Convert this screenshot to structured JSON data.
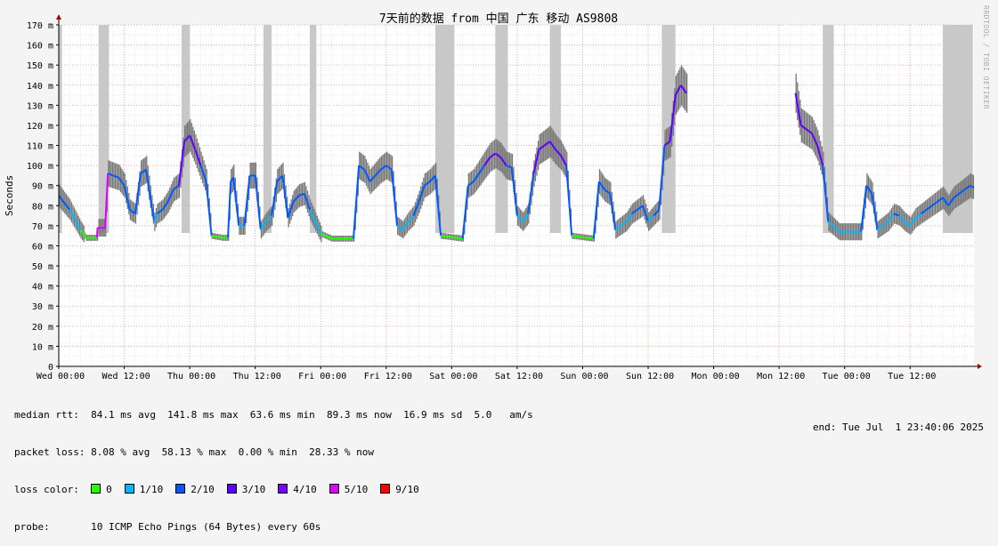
{
  "side_text": "RRDTOOL / TOBI OETIKER",
  "chart_data": {
    "type": "line",
    "title": "7天前的数据 from 中国 广东 移动 AS9808",
    "ylabel": "Seconds",
    "ylim": [
      0,
      170
    ],
    "y_ticks": [
      {
        "v": 0,
        "label": "0"
      },
      {
        "v": 10,
        "label": "10 m"
      },
      {
        "v": 20,
        "label": "20 m"
      },
      {
        "v": 30,
        "label": "30 m"
      },
      {
        "v": 40,
        "label": "40 m"
      },
      {
        "v": 50,
        "label": "50 m"
      },
      {
        "v": 60,
        "label": "60 m"
      },
      {
        "v": 70,
        "label": "70 m"
      },
      {
        "v": 80,
        "label": "80 m"
      },
      {
        "v": 90,
        "label": "90 m"
      },
      {
        "v": 100,
        "label": "100 m"
      },
      {
        "v": 110,
        "label": "110 m"
      },
      {
        "v": 120,
        "label": "120 m"
      },
      {
        "v": 130,
        "label": "130 m"
      },
      {
        "v": 140,
        "label": "140 m"
      },
      {
        "v": 150,
        "label": "150 m"
      },
      {
        "v": 160,
        "label": "160 m"
      },
      {
        "v": 170,
        "label": "170 m"
      }
    ],
    "x_ticks": [
      "Wed 00:00",
      "Wed 12:00",
      "Thu 00:00",
      "Thu 12:00",
      "Fri 00:00",
      "Fri 12:00",
      "Sat 00:00",
      "Sat 12:00",
      "Sun 00:00",
      "Sun 12:00",
      "Mon 00:00",
      "Mon 12:00",
      "Tue 00:00",
      "Tue 12:00"
    ],
    "x_unit": "hours from Wed 00:00",
    "xlim": [
      0,
      167.7
    ],
    "grid": true,
    "median_ms": [
      [
        0,
        85
      ],
      [
        2,
        78
      ],
      [
        4,
        68
      ],
      [
        5,
        64
      ],
      [
        7,
        64
      ],
      [
        7.1,
        69
      ],
      [
        8.5,
        69
      ],
      [
        9,
        96
      ],
      [
        10,
        95
      ],
      [
        11,
        94
      ],
      [
        12,
        90
      ],
      [
        13,
        78
      ],
      [
        14,
        76
      ],
      [
        15,
        96
      ],
      [
        16,
        98
      ],
      [
        17,
        80
      ],
      [
        17.5,
        72
      ],
      [
        18,
        76
      ],
      [
        19,
        78
      ],
      [
        20,
        82
      ],
      [
        21,
        88
      ],
      [
        22,
        90
      ],
      [
        23,
        112
      ],
      [
        24,
        115
      ],
      [
        25,
        108
      ],
      [
        26,
        100
      ],
      [
        27,
        92
      ],
      [
        28,
        65
      ],
      [
        30,
        64
      ],
      [
        31,
        64
      ],
      [
        31.5,
        92
      ],
      [
        32,
        94
      ],
      [
        33,
        70
      ],
      [
        34,
        70
      ],
      [
        35,
        95
      ],
      [
        36,
        95
      ],
      [
        37,
        68
      ],
      [
        38,
        72
      ],
      [
        39,
        75
      ],
      [
        40,
        92
      ],
      [
        41,
        95
      ],
      [
        42,
        74
      ],
      [
        43,
        82
      ],
      [
        44,
        85
      ],
      [
        45,
        86
      ],
      [
        46,
        78
      ],
      [
        47,
        72
      ],
      [
        48,
        66
      ],
      [
        50,
        63.6
      ],
      [
        54,
        63.6
      ],
      [
        55,
        100
      ],
      [
        56,
        98
      ],
      [
        57,
        92
      ],
      [
        58,
        95
      ],
      [
        59,
        98
      ],
      [
        60,
        100
      ],
      [
        61,
        98
      ],
      [
        62,
        70
      ],
      [
        63,
        68
      ],
      [
        64,
        72
      ],
      [
        65,
        75
      ],
      [
        66,
        82
      ],
      [
        67,
        90
      ],
      [
        68,
        92
      ],
      [
        69,
        95
      ],
      [
        70,
        65
      ],
      [
        74,
        63.6
      ],
      [
        75,
        90
      ],
      [
        76,
        92
      ],
      [
        77,
        96
      ],
      [
        78,
        100
      ],
      [
        79,
        104
      ],
      [
        80,
        106
      ],
      [
        81,
        104
      ],
      [
        82,
        100
      ],
      [
        83,
        99
      ],
      [
        84,
        75
      ],
      [
        85,
        72
      ],
      [
        86,
        76
      ],
      [
        87,
        96
      ],
      [
        88,
        108
      ],
      [
        89,
        110
      ],
      [
        90,
        112
      ],
      [
        91,
        108
      ],
      [
        92,
        105
      ],
      [
        93,
        100
      ],
      [
        94,
        65
      ],
      [
        98,
        63.6
      ],
      [
        99,
        92
      ],
      [
        100,
        88
      ],
      [
        101,
        86
      ],
      [
        102,
        68
      ],
      [
        103,
        70
      ],
      [
        104,
        72
      ],
      [
        105,
        76
      ],
      [
        106,
        78
      ],
      [
        107,
        80
      ],
      [
        108,
        72
      ],
      [
        109,
        75
      ],
      [
        110,
        78
      ],
      [
        111,
        110
      ],
      [
        112,
        112
      ],
      [
        113,
        135
      ],
      [
        114,
        140
      ],
      [
        115,
        136
      ],
      [
        135,
        136
      ],
      [
        136,
        120
      ],
      [
        137,
        118
      ],
      [
        138,
        116
      ],
      [
        139,
        110
      ],
      [
        140,
        100
      ],
      [
        141,
        72
      ],
      [
        143,
        67
      ],
      [
        147,
        67
      ],
      [
        148,
        90
      ],
      [
        149,
        86
      ],
      [
        150,
        68
      ],
      [
        151,
        70
      ],
      [
        152,
        72
      ],
      [
        153,
        76
      ],
      [
        154,
        75
      ],
      [
        155,
        72
      ],
      [
        156,
        70
      ],
      [
        157,
        74
      ],
      [
        158,
        76
      ],
      [
        159,
        78
      ],
      [
        160,
        80
      ],
      [
        161,
        82
      ],
      [
        162,
        84
      ],
      [
        163,
        80
      ],
      [
        164,
        84
      ],
      [
        165,
        86
      ],
      [
        166,
        88
      ],
      [
        167,
        90
      ],
      [
        167.7,
        89
      ]
    ],
    "gaps": [
      [
        115,
        135
      ]
    ],
    "loss_zones": [
      [
        0,
        0.6
      ],
      [
        7.3,
        9.2
      ],
      [
        22.5,
        24
      ],
      [
        37.5,
        39
      ],
      [
        46,
        47.2
      ],
      [
        69,
        72.5
      ],
      [
        80,
        82.3
      ],
      [
        90,
        92
      ],
      [
        110.5,
        113
      ],
      [
        140,
        142
      ],
      [
        162,
        167.5
      ]
    ],
    "stats": {
      "median_rtt": "median rtt:  84.1 ms avg  141.8 ms max  63.6 ms min  89.3 ms now  16.9 ms sd  5.0   am/s",
      "packet_loss": "packet loss: 8.08 % avg  58.13 % max  0.00 % min  28.33 % now"
    },
    "loss_color_label": "loss color:",
    "loss_colors": [
      {
        "label": "0",
        "color": "#26ff00"
      },
      {
        "label": "1/10",
        "color": "#00b8ff"
      },
      {
        "label": "2/10",
        "color": "#0059ff"
      },
      {
        "label": "3/10",
        "color": "#5e00ff"
      },
      {
        "label": "4/10",
        "color": "#7e00ff"
      },
      {
        "label": "5/10",
        "color": "#dd00ff"
      },
      {
        "label": "9/10",
        "color": "#ff0000"
      }
    ],
    "probe_label": "probe:",
    "probe_text": "10 ICMP Echo Pings (64 Bytes) every 60s",
    "end_text": "end: Tue Jul  1 23:40:06 2025"
  }
}
